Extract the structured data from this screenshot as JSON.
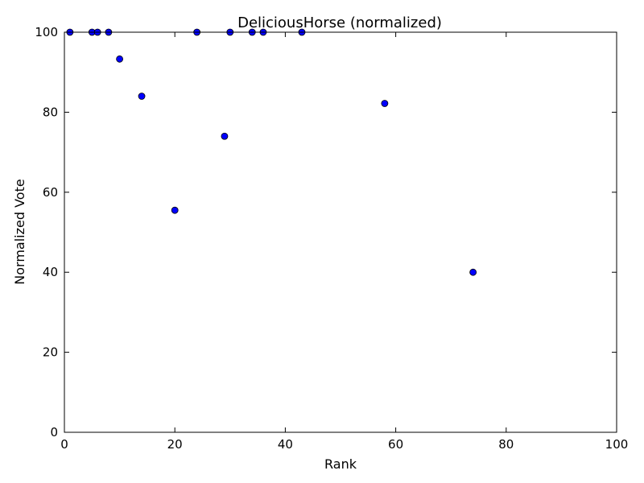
{
  "chart_data": {
    "type": "scatter",
    "title": "DeliciousHorse (normalized)",
    "xlabel": "Rank",
    "ylabel": "Normalized Vote",
    "xlim": [
      0,
      100
    ],
    "ylim": [
      0,
      100
    ],
    "xticks": [
      0,
      20,
      40,
      60,
      80,
      100
    ],
    "yticks": [
      0,
      20,
      40,
      60,
      80,
      100
    ],
    "xtick_labels": [
      "0",
      "20",
      "40",
      "60",
      "80",
      "100"
    ],
    "ytick_labels": [
      "0",
      "20",
      "40",
      "60",
      "80",
      "100"
    ],
    "grid": false,
    "marker_color": "#0000ff",
    "marker_edge_color": "#000000",
    "points": [
      {
        "x": 1,
        "y": 100
      },
      {
        "x": 5,
        "y": 100
      },
      {
        "x": 6,
        "y": 100
      },
      {
        "x": 8,
        "y": 100
      },
      {
        "x": 10,
        "y": 93.3
      },
      {
        "x": 14,
        "y": 84
      },
      {
        "x": 20,
        "y": 55.5
      },
      {
        "x": 24,
        "y": 100
      },
      {
        "x": 29,
        "y": 74
      },
      {
        "x": 30,
        "y": 100
      },
      {
        "x": 34,
        "y": 100
      },
      {
        "x": 36,
        "y": 100
      },
      {
        "x": 43,
        "y": 100
      },
      {
        "x": 58,
        "y": 82.2
      },
      {
        "x": 74,
        "y": 40
      }
    ]
  }
}
